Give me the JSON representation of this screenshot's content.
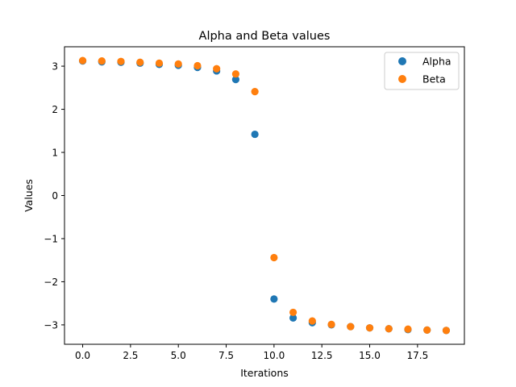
{
  "chart_data": {
    "type": "scatter",
    "title": "Alpha and Beta values",
    "xlabel": "Iterations",
    "ylabel": "Values",
    "xlim": [
      -0.95,
      19.95
    ],
    "ylim": [
      -3.45,
      3.45
    ],
    "x_ticks": [
      0,
      2.5,
      5,
      7.5,
      10,
      12.5,
      15,
      17.5
    ],
    "x_tick_labels": [
      "0.0",
      "2.5",
      "5.0",
      "7.5",
      "10.0",
      "12.5",
      "15.0",
      "17.5"
    ],
    "y_ticks": [
      -3,
      -2,
      -1,
      0,
      1,
      2,
      3
    ],
    "y_tick_labels": [
      "−3",
      "−2",
      "−1",
      "0",
      "1",
      "2",
      "3"
    ],
    "grid": false,
    "legend_position": "top-right",
    "x": [
      0,
      1,
      2,
      3,
      4,
      5,
      6,
      7,
      8,
      9,
      10,
      11,
      12,
      13,
      14,
      15,
      16,
      17,
      18,
      19
    ],
    "series": [
      {
        "name": "Alpha",
        "color": "#1f77b4",
        "values": [
          3.12,
          3.1,
          3.09,
          3.07,
          3.04,
          3.02,
          2.97,
          2.89,
          2.69,
          1.42,
          -2.4,
          -2.84,
          -2.95,
          -3.0,
          -3.04,
          -3.07,
          -3.09,
          -3.11,
          -3.12,
          -3.13
        ]
      },
      {
        "name": "Beta",
        "color": "#ff7f0e",
        "values": [
          3.13,
          3.12,
          3.11,
          3.09,
          3.07,
          3.05,
          3.01,
          2.94,
          2.82,
          2.41,
          -1.44,
          -2.71,
          -2.91,
          -2.99,
          -3.04,
          -3.07,
          -3.09,
          -3.1,
          -3.12,
          -3.13
        ]
      }
    ]
  }
}
